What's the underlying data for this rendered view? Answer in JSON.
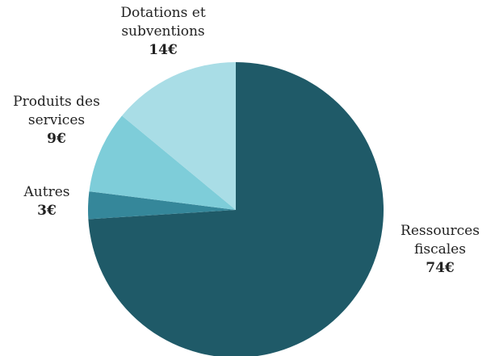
{
  "chart_data": {
    "type": "pie",
    "categories": [
      "Ressources fiscales",
      "Autres",
      "Produits des services",
      "Dotations et subventions"
    ],
    "values": [
      74,
      3,
      9,
      14
    ],
    "value_labels": [
      "74€",
      "3€",
      "9€",
      "14€"
    ],
    "colors": [
      "#1f5a68",
      "#35879a",
      "#7ecdd9",
      "#a9dde6"
    ]
  }
}
